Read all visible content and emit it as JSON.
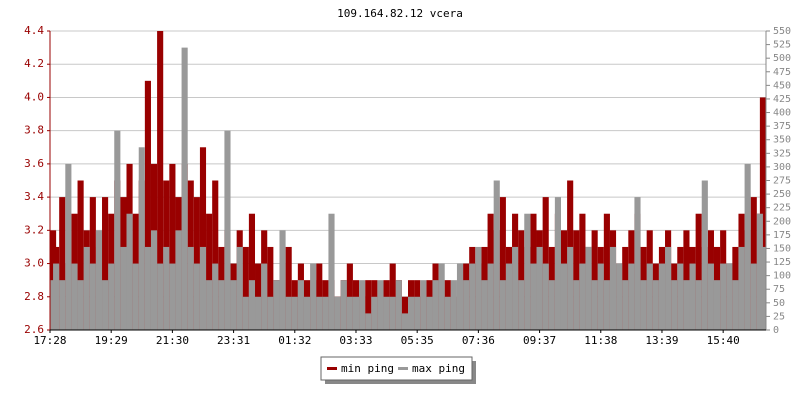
{
  "chart_data": {
    "type": "bar",
    "title": "109.164.82.12 vcera",
    "categories": [
      "17:28",
      null,
      null,
      null,
      null,
      null,
      null,
      null,
      null,
      null,
      "19:29",
      null,
      null,
      null,
      null,
      null,
      null,
      null,
      null,
      null,
      "21:30",
      null,
      null,
      null,
      null,
      null,
      null,
      null,
      null,
      null,
      "23:31",
      null,
      null,
      null,
      null,
      null,
      null,
      null,
      null,
      null,
      "01:32",
      null,
      null,
      null,
      null,
      null,
      null,
      null,
      null,
      null,
      "03:33",
      null,
      null,
      null,
      null,
      null,
      null,
      null,
      null,
      null,
      "05:35",
      null,
      null,
      null,
      null,
      null,
      null,
      null,
      null,
      null,
      "07:36",
      null,
      null,
      null,
      null,
      null,
      null,
      null,
      null,
      null,
      "09:37",
      null,
      null,
      null,
      null,
      null,
      null,
      null,
      null,
      null,
      "11:38",
      null,
      null,
      null,
      null,
      null,
      null,
      null,
      null,
      null,
      "13:39",
      null,
      null,
      null,
      null,
      null,
      null,
      null,
      null,
      null,
      "15:40",
      null,
      null,
      null,
      null,
      null,
      null,
      null
    ],
    "series": [
      {
        "name": "min ping",
        "color": "#990000",
        "values": [
          3.2,
          3.1,
          3.4,
          3.0,
          3.3,
          3.5,
          3.2,
          3.4,
          3.1,
          3.4,
          3.3,
          3.5,
          3.4,
          3.6,
          3.3,
          3.5,
          4.1,
          3.6,
          4.4,
          3.5,
          3.6,
          3.4,
          3.6,
          3.5,
          3.4,
          3.7,
          3.3,
          3.5,
          3.1,
          3.2,
          3.0,
          3.2,
          3.1,
          3.3,
          3.0,
          3.2,
          3.1,
          2.9,
          3.0,
          3.1,
          2.9,
          3.0,
          2.9,
          2.9,
          3.0,
          2.9,
          2.9,
          2.8,
          2.9,
          3.0,
          2.9,
          2.8,
          2.9,
          2.9,
          2.8,
          2.9,
          3.0,
          2.9,
          2.8,
          2.9,
          2.9,
          2.8,
          2.9,
          3.0,
          2.9,
          2.9,
          2.8,
          2.9,
          3.0,
          3.1,
          3.0,
          3.1,
          3.3,
          3.2,
          3.4,
          3.1,
          3.3,
          3.2,
          3.1,
          3.3,
          3.2,
          3.4,
          3.1,
          3.3,
          3.2,
          3.5,
          3.2,
          3.3,
          3.1,
          3.2,
          3.1,
          3.3,
          3.2,
          3.0,
          3.1,
          3.2,
          3.3,
          3.1,
          3.2,
          3.0,
          3.1,
          3.2,
          3.0,
          3.1,
          3.2,
          3.1,
          3.3,
          3.1,
          3.2,
          3.1,
          3.2,
          3.0,
          3.1,
          3.3,
          3.2,
          3.4,
          3.3,
          4.0
        ]
      },
      {
        "name": "max ping",
        "color": "#999999",
        "values": [
          2.9,
          3.0,
          2.9,
          3.6,
          3.0,
          2.9,
          3.1,
          3.0,
          3.2,
          2.9,
          3.0,
          3.8,
          3.1,
          3.3,
          3.0,
          3.7,
          3.1,
          3.2,
          3.0,
          3.1,
          3.0,
          3.2,
          4.3,
          3.1,
          3.0,
          3.1,
          2.9,
          3.0,
          2.9,
          3.8,
          2.9,
          3.1,
          2.8,
          2.9,
          2.8,
          3.0,
          2.8,
          2.9,
          3.2,
          2.8,
          2.8,
          2.9,
          2.8,
          3.0,
          2.8,
          2.8,
          3.3,
          2.8,
          2.9,
          2.8,
          2.8,
          2.9,
          2.7,
          2.8,
          2.9,
          2.8,
          2.8,
          2.9,
          2.7,
          2.8,
          2.8,
          2.9,
          2.8,
          2.9,
          3.0,
          2.8,
          2.9,
          3.0,
          2.9,
          3.0,
          3.1,
          2.9,
          3.0,
          3.5,
          2.9,
          3.0,
          3.1,
          2.9,
          3.3,
          3.0,
          3.1,
          3.0,
          2.9,
          3.4,
          3.0,
          3.1,
          2.9,
          3.0,
          3.1,
          2.9,
          3.0,
          2.9,
          3.1,
          3.0,
          2.9,
          3.0,
          3.4,
          2.9,
          3.0,
          2.9,
          3.0,
          3.1,
          2.9,
          3.0,
          2.9,
          3.0,
          2.9,
          3.5,
          3.0,
          2.9,
          3.0,
          3.0,
          2.9,
          3.1,
          3.6,
          3.0,
          3.3,
          3.1
        ]
      }
    ],
    "ylim": [
      2.6,
      4.4
    ],
    "yticks": [
      2.6,
      2.8,
      {
        "value": 3,
        "label": "3.0"
      },
      3.2,
      3.4,
      3.6,
      3.8,
      {
        "value": 4,
        "label": "4.0"
      },
      4.2,
      4.4
    ],
    "y2lim": [
      0,
      550
    ],
    "y2ticks": [
      0,
      25,
      50,
      75,
      100,
      125,
      150,
      175,
      200,
      225,
      250,
      275,
      300,
      325,
      350,
      375,
      400,
      425,
      450,
      475,
      500,
      525,
      550
    ],
    "grid": true
  }
}
